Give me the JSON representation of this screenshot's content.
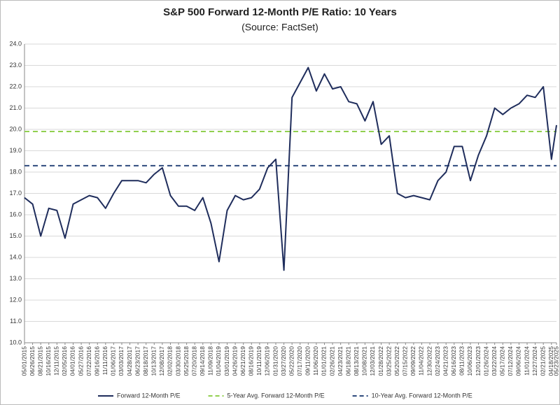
{
  "chart_data": {
    "type": "line",
    "title": "S&P 500 Forward 12-Month P/E Ratio: 10 Years",
    "subtitle": "(Source: FactSet)",
    "x": [
      "05/01/2015",
      "06/26/2015",
      "08/21/2015",
      "10/16/2015",
      "12/11/2015",
      "02/05/2016",
      "04/01/2016",
      "05/27/2016",
      "07/22/2016",
      "09/16/2016",
      "11/11/2016",
      "01/06/2017",
      "03/03/2017",
      "04/28/2017",
      "06/23/2017",
      "08/18/2017",
      "10/13/2017",
      "12/08/2017",
      "02/02/2018",
      "03/30/2018",
      "05/25/2018",
      "07/20/2018",
      "09/14/2018",
      "11/09/2018",
      "01/04/2019",
      "03/01/2019",
      "04/26/2019",
      "06/21/2019",
      "08/16/2019",
      "10/11/2019",
      "12/06/2019",
      "01/31/2020",
      "03/27/2020",
      "05/22/2020",
      "07/17/2020",
      "09/11/2020",
      "11/06/2020",
      "01/01/2021",
      "02/26/2021",
      "04/23/2021",
      "06/18/2021",
      "08/13/2021",
      "10/08/2021",
      "12/03/2021",
      "01/28/2022",
      "03/25/2022",
      "05/20/2022",
      "07/15/2022",
      "09/09/2022",
      "11/04/2022",
      "12/30/2022",
      "02/24/2023",
      "04/21/2023",
      "06/16/2023",
      "08/11/2023",
      "10/06/2023",
      "12/01/2023",
      "01/26/2024",
      "03/22/2024",
      "05/17/2024",
      "07/12/2024",
      "09/06/2024",
      "11/01/2024",
      "12/27/2024",
      "02/21/2025",
      "04/18/2025",
      "05/23/2025"
    ],
    "series": [
      {
        "name": "Forward 12-Month P/E",
        "color": "#1f2d5c",
        "values": [
          16.8,
          16.5,
          15.0,
          16.3,
          16.2,
          14.9,
          16.5,
          16.7,
          16.9,
          16.8,
          16.3,
          17.0,
          17.6,
          17.6,
          17.6,
          17.5,
          17.9,
          18.2,
          16.9,
          16.4,
          16.4,
          16.2,
          16.8,
          15.6,
          13.8,
          16.2,
          16.9,
          16.7,
          16.8,
          17.2,
          18.2,
          18.6,
          13.4,
          21.5,
          22.2,
          22.9,
          21.8,
          22.6,
          21.9,
          22.0,
          21.3,
          21.2,
          20.4,
          21.3,
          19.3,
          19.7,
          17.0,
          16.8,
          16.9,
          16.8,
          16.7,
          17.6,
          18.0,
          19.2,
          19.2,
          17.6,
          18.8,
          19.7,
          21.0,
          20.7,
          21.0,
          21.2,
          21.6,
          21.5,
          22.0,
          18.6,
          20.2
        ]
      }
    ],
    "reference_lines": [
      {
        "name": "5-Year Avg. Forward 12-Month P/E",
        "value": 19.9,
        "color": "#92d050"
      },
      {
        "name": "10-Year Avg. Forward 12-Month P/E",
        "value": 18.3,
        "color": "#2e4a7d"
      }
    ],
    "ylim": [
      10,
      24
    ],
    "yticks": [
      {
        "value": 10,
        "label": "10.0"
      },
      {
        "value": 11,
        "label": "11.0"
      },
      {
        "value": 12,
        "label": "12.0"
      },
      {
        "value": 13,
        "label": "13.0"
      },
      {
        "value": 14,
        "label": "14.0"
      },
      {
        "value": 15,
        "label": "15.0"
      },
      {
        "value": 16,
        "label": "16.0"
      },
      {
        "value": 17,
        "label": "17.0"
      },
      {
        "value": 18,
        "label": "18.0"
      },
      {
        "value": 19,
        "label": "19.0"
      },
      {
        "value": 20,
        "label": "20.0"
      },
      {
        "value": 21,
        "label": "21.0"
      },
      {
        "value": 22,
        "label": "22.0"
      },
      {
        "value": 23,
        "label": "23.0"
      },
      {
        "value": 24,
        "label": "24.0"
      }
    ],
    "grid": true,
    "legend": "bottom"
  }
}
